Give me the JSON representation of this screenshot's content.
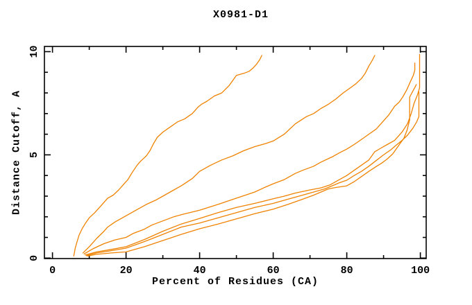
{
  "window": {
    "background": "#ffffff"
  },
  "chart_data": {
    "type": "line",
    "title": "X0981-D1",
    "xlabel": "Percent of Residues (CA)",
    "ylabel": "Distance Cutoff, A",
    "xlim": [
      0,
      100
    ],
    "ylim": [
      0,
      10
    ],
    "xticks_major": [
      0,
      20,
      40,
      60,
      80,
      100
    ],
    "xticks_minor": [
      10,
      30,
      50,
      70,
      90
    ],
    "yticks_major": [
      0,
      5,
      10
    ],
    "yticks_minor": [
      1,
      2,
      3,
      4,
      6,
      7,
      8,
      9
    ],
    "grid": false,
    "legend_position": "none",
    "line_color": "#ef8200",
    "axis_color": "#000000",
    "series": [
      {
        "name": "curve-1",
        "points": [
          [
            5.8,
            0.1
          ],
          [
            6.2,
            0.5
          ],
          [
            6.7,
            0.8
          ],
          [
            7.2,
            1.1
          ],
          [
            8,
            1.4
          ],
          [
            9,
            1.7
          ],
          [
            10,
            1.95
          ],
          [
            11.5,
            2.2
          ],
          [
            13,
            2.5
          ],
          [
            15,
            2.9
          ],
          [
            16.5,
            3.05
          ],
          [
            18,
            3.3
          ],
          [
            19.5,
            3.6
          ],
          [
            20.5,
            3.8
          ],
          [
            21.5,
            4.1
          ],
          [
            23,
            4.5
          ],
          [
            24,
            4.7
          ],
          [
            25.5,
            4.95
          ],
          [
            26.5,
            5.2
          ],
          [
            27.5,
            5.55
          ],
          [
            28.5,
            5.85
          ],
          [
            30,
            6.1
          ],
          [
            32,
            6.35
          ],
          [
            34,
            6.6
          ],
          [
            36,
            6.75
          ],
          [
            38,
            7.0
          ],
          [
            39.5,
            7.3
          ],
          [
            40.5,
            7.45
          ],
          [
            42,
            7.6
          ],
          [
            44,
            7.85
          ],
          [
            46,
            8.0
          ],
          [
            48,
            8.35
          ],
          [
            50,
            8.85
          ],
          [
            52,
            8.95
          ],
          [
            53.5,
            9.05
          ],
          [
            54.5,
            9.2
          ],
          [
            55.5,
            9.4
          ],
          [
            56.3,
            9.6
          ],
          [
            56.9,
            9.82
          ]
        ]
      },
      {
        "name": "curve-2",
        "points": [
          [
            8.3,
            0.25
          ],
          [
            10,
            0.55
          ],
          [
            12,
            0.95
          ],
          [
            14,
            1.3
          ],
          [
            15,
            1.5
          ],
          [
            17,
            1.75
          ],
          [
            20,
            2.05
          ],
          [
            23,
            2.35
          ],
          [
            25.5,
            2.6
          ],
          [
            28,
            2.8
          ],
          [
            30,
            3.0
          ],
          [
            33,
            3.3
          ],
          [
            35,
            3.5
          ],
          [
            38,
            3.85
          ],
          [
            40,
            4.2
          ],
          [
            43,
            4.5
          ],
          [
            46,
            4.75
          ],
          [
            49,
            4.95
          ],
          [
            52,
            5.2
          ],
          [
            55,
            5.4
          ],
          [
            58,
            5.55
          ],
          [
            60,
            5.67
          ],
          [
            63,
            6.0
          ],
          [
            66,
            6.5
          ],
          [
            69,
            6.85
          ],
          [
            71,
            7.0
          ],
          [
            73,
            7.25
          ],
          [
            75,
            7.45
          ],
          [
            77,
            7.7
          ],
          [
            79,
            8.0
          ],
          [
            81,
            8.25
          ],
          [
            82.5,
            8.45
          ],
          [
            84,
            8.7
          ],
          [
            85,
            8.95
          ],
          [
            86,
            9.3
          ],
          [
            87,
            9.6
          ],
          [
            87.6,
            9.82
          ]
        ]
      },
      {
        "name": "curve-3",
        "points": [
          [
            8.6,
            0.2
          ],
          [
            11,
            0.45
          ],
          [
            14,
            0.7
          ],
          [
            17,
            0.88
          ],
          [
            20,
            1.0
          ],
          [
            22,
            1.2
          ],
          [
            25,
            1.4
          ],
          [
            27,
            1.6
          ],
          [
            30,
            1.8
          ],
          [
            33,
            2.0
          ],
          [
            35,
            2.1
          ],
          [
            40,
            2.32
          ],
          [
            45,
            2.6
          ],
          [
            50,
            2.9
          ],
          [
            55,
            3.2
          ],
          [
            58,
            3.45
          ],
          [
            60,
            3.6
          ],
          [
            63,
            3.8
          ],
          [
            66,
            4.1
          ],
          [
            68,
            4.25
          ],
          [
            71,
            4.45
          ],
          [
            73,
            4.65
          ],
          [
            76,
            4.9
          ],
          [
            78,
            5.1
          ],
          [
            80,
            5.28
          ],
          [
            82,
            5.5
          ],
          [
            84,
            5.75
          ],
          [
            86,
            6.0
          ],
          [
            88,
            6.25
          ],
          [
            90,
            6.65
          ],
          [
            91.5,
            6.95
          ],
          [
            93,
            7.35
          ],
          [
            94.2,
            7.55
          ],
          [
            95.2,
            7.8
          ],
          [
            96.3,
            8.15
          ],
          [
            97.3,
            8.55
          ],
          [
            98.1,
            8.85
          ],
          [
            98.5,
            9.1
          ],
          [
            98.5,
            9.45
          ]
        ]
      },
      {
        "name": "curve-4",
        "points": [
          [
            8.9,
            0.15
          ],
          [
            12,
            0.3
          ],
          [
            16,
            0.42
          ],
          [
            20,
            0.55
          ],
          [
            25,
            0.9
          ],
          [
            30,
            1.3
          ],
          [
            35,
            1.65
          ],
          [
            40,
            1.92
          ],
          [
            45,
            2.2
          ],
          [
            50,
            2.45
          ],
          [
            55,
            2.65
          ],
          [
            60,
            2.87
          ],
          [
            63,
            3.0
          ],
          [
            66,
            3.15
          ],
          [
            70,
            3.3
          ],
          [
            73,
            3.4
          ],
          [
            75.5,
            3.55
          ],
          [
            78,
            3.8
          ],
          [
            80,
            4.0
          ],
          [
            82,
            4.25
          ],
          [
            84,
            4.5
          ],
          [
            86,
            4.75
          ],
          [
            87.6,
            5.15
          ],
          [
            89,
            5.3
          ],
          [
            91,
            5.5
          ],
          [
            93,
            5.7
          ],
          [
            95,
            6.1
          ],
          [
            96.5,
            6.5
          ],
          [
            97.5,
            7.0
          ],
          [
            98.3,
            7.5
          ],
          [
            99.2,
            7.9
          ],
          [
            99.8,
            8.25
          ],
          [
            99.8,
            9.87
          ]
        ]
      },
      {
        "name": "curve-5",
        "points": [
          [
            9.2,
            0.12
          ],
          [
            12,
            0.25
          ],
          [
            16,
            0.36
          ],
          [
            20,
            0.48
          ],
          [
            25,
            0.8
          ],
          [
            30,
            1.15
          ],
          [
            35,
            1.5
          ],
          [
            40,
            1.7
          ],
          [
            45,
            1.95
          ],
          [
            50,
            2.2
          ],
          [
            55,
            2.45
          ],
          [
            60,
            2.65
          ],
          [
            64,
            2.85
          ],
          [
            68,
            3.05
          ],
          [
            71,
            3.2
          ],
          [
            74,
            3.35
          ],
          [
            76,
            3.5
          ],
          [
            78,
            3.65
          ],
          [
            80,
            3.77
          ],
          [
            82,
            4.0
          ],
          [
            84,
            4.2
          ],
          [
            86,
            4.45
          ],
          [
            87.6,
            4.67
          ],
          [
            90,
            5.0
          ],
          [
            92,
            5.25
          ],
          [
            93.3,
            5.45
          ],
          [
            95,
            5.7
          ],
          [
            96.5,
            5.95
          ],
          [
            98,
            6.3
          ],
          [
            99,
            6.6
          ],
          [
            99.6,
            6.85
          ],
          [
            99.6,
            8.05
          ]
        ]
      },
      {
        "name": "curve-6",
        "points": [
          [
            9.5,
            0.1
          ],
          [
            12,
            0.18
          ],
          [
            16,
            0.25
          ],
          [
            20,
            0.3
          ],
          [
            25,
            0.55
          ],
          [
            30,
            0.85
          ],
          [
            35,
            1.15
          ],
          [
            40,
            1.42
          ],
          [
            45,
            1.65
          ],
          [
            50,
            1.9
          ],
          [
            55,
            2.15
          ],
          [
            60,
            2.37
          ],
          [
            64,
            2.6
          ],
          [
            68,
            2.85
          ],
          [
            71,
            3.05
          ],
          [
            73,
            3.2
          ],
          [
            75,
            3.35
          ],
          [
            77,
            3.42
          ],
          [
            80,
            3.5
          ],
          [
            82,
            3.7
          ],
          [
            84,
            3.95
          ],
          [
            86,
            4.2
          ],
          [
            87.6,
            4.39
          ],
          [
            89.5,
            4.6
          ],
          [
            91,
            4.8
          ],
          [
            92.5,
            5.05
          ],
          [
            93.5,
            5.3
          ],
          [
            94.5,
            5.55
          ],
          [
            95.5,
            5.8
          ],
          [
            96.4,
            6.2
          ],
          [
            97.1,
            6.7
          ],
          [
            97.1,
            7.8
          ],
          [
            98,
            8.1
          ],
          [
            98.9,
            8.4
          ]
        ]
      }
    ]
  }
}
